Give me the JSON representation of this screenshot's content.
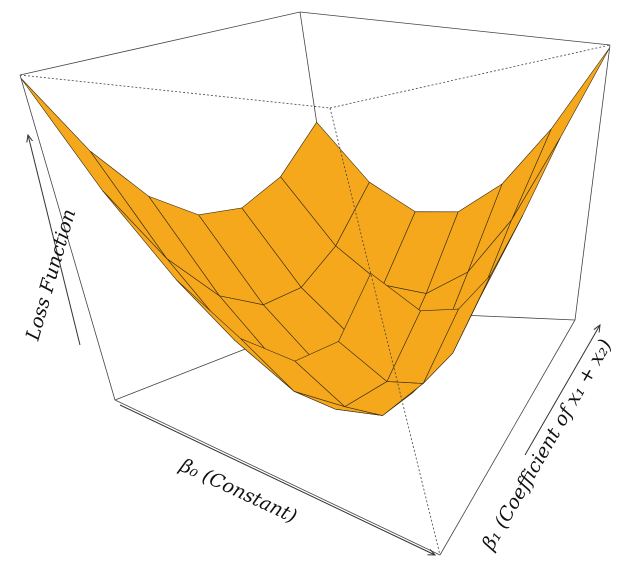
{
  "chart_data": {
    "type": "surface",
    "x_label": "β₀ (Constant)",
    "y_label": "β₁ (Coefficient of x₁ + x₂)",
    "z_label": "Loss Function",
    "color": "#f5a81c",
    "x": [
      -3,
      -2,
      -1,
      0,
      1,
      2,
      3
    ],
    "y": [
      -3,
      -2,
      -1,
      0,
      1,
      2,
      3
    ],
    "z": [
      [
        99,
        68,
        47,
        36,
        35,
        44,
        63
      ],
      [
        73,
        44,
        25,
        16,
        17,
        28,
        49
      ],
      [
        55,
        28,
        11,
        4,
        7,
        20,
        43
      ],
      [
        45,
        20,
        5,
        0,
        5,
        20,
        45
      ],
      [
        43,
        20,
        7,
        4,
        11,
        28,
        55
      ],
      [
        49,
        28,
        17,
        16,
        25,
        44,
        73
      ],
      [
        63,
        44,
        35,
        36,
        47,
        68,
        99
      ]
    ],
    "xlim": [
      -3,
      3
    ],
    "ylim": [
      -3,
      3
    ],
    "zlim": [
      0,
      100
    ]
  }
}
